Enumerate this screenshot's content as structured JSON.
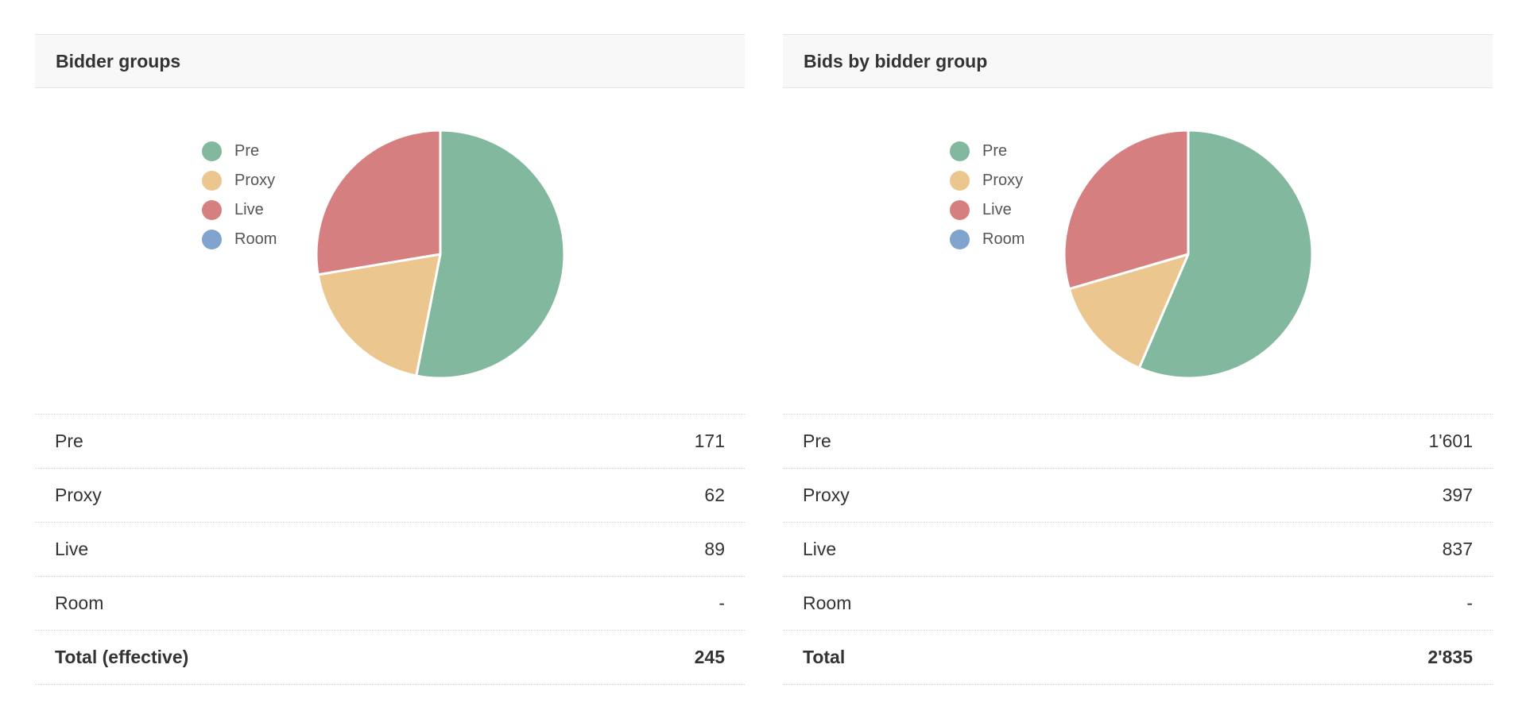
{
  "panels": [
    {
      "title": "Bidder groups",
      "rows": [
        {
          "label": "Pre",
          "value": "171"
        },
        {
          "label": "Proxy",
          "value": "62"
        },
        {
          "label": "Live",
          "value": "89"
        },
        {
          "label": "Room",
          "value": "-"
        }
      ],
      "total": {
        "label": "Total (effective)",
        "value": "245"
      }
    },
    {
      "title": "Bids by bidder group",
      "rows": [
        {
          "label": "Pre",
          "value": "1'601"
        },
        {
          "label": "Proxy",
          "value": "397"
        },
        {
          "label": "Live",
          "value": "837"
        },
        {
          "label": "Room",
          "value": "-"
        }
      ],
      "total": {
        "label": "Total",
        "value": "2'835"
      }
    }
  ],
  "chart_data": [
    {
      "type": "pie",
      "categories": [
        "Pre",
        "Proxy",
        "Live",
        "Room"
      ],
      "values": [
        171,
        62,
        89,
        0
      ],
      "colors": [
        "#82b89e",
        "#ecc68f",
        "#d67f80",
        "#80a4cd"
      ],
      "legend": "left"
    },
    {
      "type": "pie",
      "categories": [
        "Pre",
        "Proxy",
        "Live",
        "Room"
      ],
      "values": [
        1601,
        397,
        837,
        0
      ],
      "colors": [
        "#82b89e",
        "#ecc68f",
        "#d67f80",
        "#80a4cd"
      ],
      "legend": "left"
    }
  ]
}
